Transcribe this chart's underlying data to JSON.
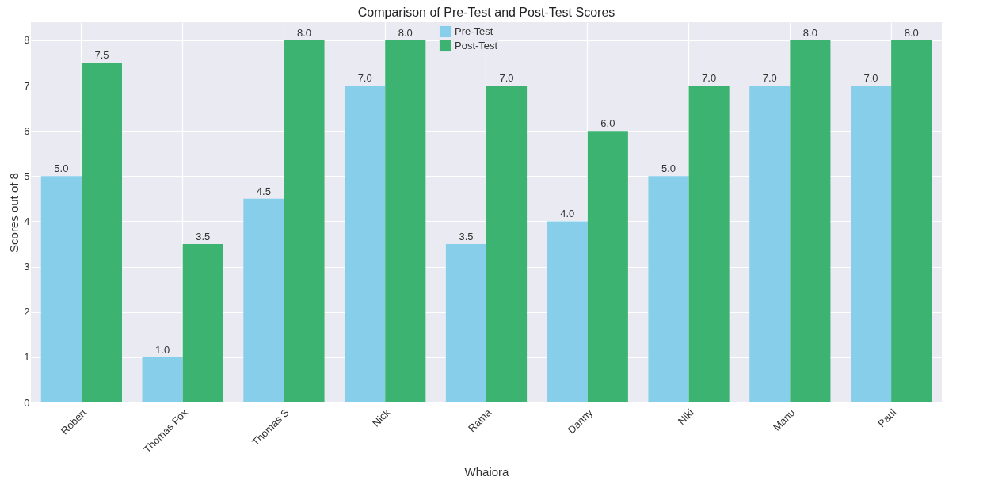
{
  "chart_data": {
    "type": "bar",
    "title": "Comparison of Pre-Test and Post-Test Scores",
    "xlabel": "Whaiora",
    "ylabel": "Scores out of 8",
    "categories": [
      "Robert",
      "Thomas Fox",
      "Thomas S",
      "Nick",
      "Rama",
      "Danny",
      "Niki",
      "Manu",
      "Paul"
    ],
    "series": [
      {
        "name": "Pre-Test",
        "color": "#87ceeb",
        "values": [
          5,
          1,
          4.5,
          7,
          3.5,
          4,
          5,
          7,
          7
        ],
        "value_labels": [
          "5.0",
          "1.0",
          "4.5",
          "7.0",
          "3.5",
          "4.0",
          "5.0",
          "7.0",
          "7.0"
        ]
      },
      {
        "name": "Post-Test",
        "color": "#3cb371",
        "values": [
          7.5,
          3.5,
          8,
          8,
          7,
          6,
          7,
          8,
          8
        ],
        "value_labels": [
          "7.5",
          "3.5",
          "8.0",
          "8.0",
          "7.0",
          "6.0",
          "7.0",
          "8.0",
          "8.0"
        ]
      }
    ],
    "ylim": [
      0,
      8.4
    ],
    "yticks": [
      0,
      1,
      2,
      3,
      4,
      5,
      6,
      7,
      8
    ],
    "grid": true,
    "legend": "top"
  }
}
